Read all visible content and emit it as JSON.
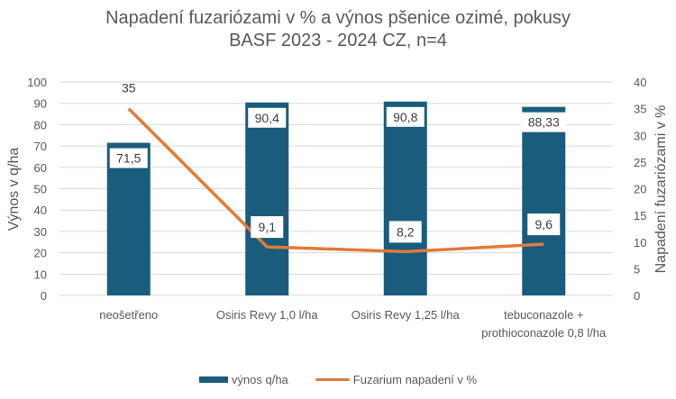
{
  "chart_data": {
    "type": "bar+line",
    "title": "Napadení fuzariózami v % a výnos pšenice ozimé, pokusy BASF 2023 - 2024 CZ, n=4",
    "title_lines": [
      "Napadení fuzariózami v % a výnos pšenice ozimé, pokusy",
      "BASF 2023 - 2024 CZ, n=4"
    ],
    "categories": [
      "neošetřeno",
      "Osiris Revy 1,0 l/ha",
      "Osiris Revy 1,25 l/ha",
      "tebuconazole + prothioconazole 0,8 l/ha"
    ],
    "category_lines": [
      [
        "neošetřeno"
      ],
      [
        "Osiris Revy 1,0 l/ha"
      ],
      [
        "Osiris Revy 1,25 l/ha"
      ],
      [
        "tebuconazole +",
        "prothioconazole 0,8 l/ha"
      ]
    ],
    "series": [
      {
        "name": "výnos q/ha",
        "type": "bar",
        "axis": "left",
        "color": "#1a5c7e",
        "values": [
          71.5,
          90.4,
          90.8,
          88.33
        ],
        "labels": [
          "71,5",
          "90,4",
          "90,8",
          "88,33"
        ]
      },
      {
        "name": "Fuzarium napadení v %",
        "type": "line",
        "axis": "right",
        "color": "#e07b39",
        "values": [
          35,
          9.1,
          8.2,
          9.6
        ],
        "labels": [
          "35",
          "9,1",
          "8,2",
          "9,6"
        ]
      }
    ],
    "ylabel": "Výnos v q/ha",
    "y2label": "Napadení fuzariózami v %",
    "ylim": [
      0,
      100
    ],
    "y2lim": [
      0,
      40
    ],
    "yticks": [
      0,
      10,
      20,
      30,
      40,
      50,
      60,
      70,
      80,
      90,
      100
    ],
    "y2ticks": [
      0,
      5,
      10,
      15,
      20,
      25,
      30,
      35,
      40
    ],
    "grid": true,
    "legend_position": "bottom"
  },
  "legend": {
    "bar_label": "výnos q/ha",
    "line_label": "Fuzarium napadení v %"
  }
}
